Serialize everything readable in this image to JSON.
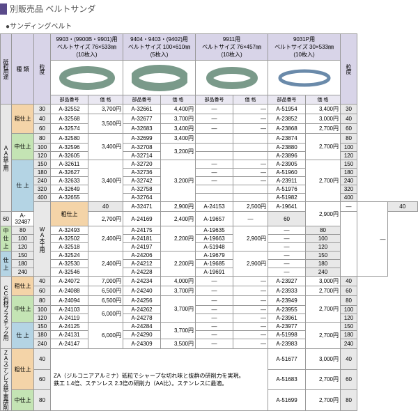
{
  "header": {
    "title": "別販売品 ベルトサンダ"
  },
  "subheader": "●サンディングベルト",
  "topHeaders": {
    "use": "砥粒用途",
    "type": "種 類",
    "grit": "粒度",
    "gritR": "粒度"
  },
  "columns": [
    {
      "title": "9903・(9900B・9901)用\nベルトサイズ 76×533㎜\n(10枚入)"
    },
    {
      "title": "9404・9403・(9402)用\nベルトサイズ 100×610㎜\n(5枚入)"
    },
    {
      "title": "9911用\nベルトサイズ 76×457㎜\n(10枚入)"
    },
    {
      "title": "9031P用\nベルトサイズ 30×533㎜\n(10枚入)"
    }
  ],
  "subCols": {
    "partNo": "部品番号",
    "price": "価 格"
  },
  "uses": {
    "aa": "AA鉄工用",
    "wa": "WA木工用",
    "cc": "CC石材プラスチック用",
    "za": "ZAステンレス鉄工重研削"
  },
  "types": {
    "rough": "粗仕上",
    "mid": "中仕上",
    "fin": "仕 上"
  },
  "rows": [
    {
      "use": "aa",
      "useSpan": 12,
      "type": "rough",
      "typeCls": "orange",
      "typeSpan": 3,
      "grit": "30",
      "c1p": "A-32552",
      "c1v": "3,700円",
      "c2p": "A-32661",
      "c2v": "4,400円",
      "c3p": "—",
      "c3v": "—",
      "c4p": "A-51954",
      "c4v": "3,400円"
    },
    {
      "grit": "40",
      "c1p": "A-32568",
      "c1v": "",
      "c1vSpan": 2,
      "c1vText": "3,500円",
      "c2p": "A-32677",
      "c2v": "3,700円",
      "c3p": "—",
      "c3v": "—",
      "c4p": "A-23852",
      "c4v": "3,000円"
    },
    {
      "grit": "60",
      "c1p": "A-32574",
      "c2p": "A-32683",
      "c2v": "3,400円",
      "c3p": "—",
      "c3v": "—",
      "c4p": "A-23868",
      "c4v": "2,700円"
    },
    {
      "type": "mid",
      "typeCls": "green",
      "typeSpan": 3,
      "grit": "80",
      "c1p": "A-32580",
      "c1v": "",
      "c1vSpan": 3,
      "c1vText": "3,400円",
      "c2p": "A-32699",
      "c2v": "3,400円",
      "c3p": "",
      "c3v": "",
      "c4p": "A-23874",
      "c4v": "",
      "c4vSpan": 3,
      "c4vText": "2,700円"
    },
    {
      "grit": "100",
      "c1p": "A-32596",
      "c2p": "A-32708",
      "c2v": "",
      "c2vSpan": 2,
      "c2vText": "3,200円",
      "c3p": "",
      "c3v": "",
      "c4p": "A-23880"
    },
    {
      "grit": "120",
      "c1p": "A-32605",
      "c2p": "A-32714",
      "c3p": "",
      "c3v": "",
      "c4p": "A-23896"
    },
    {
      "type": "fin",
      "typeCls": "blue",
      "typeSpan": 6,
      "grit": "150",
      "c1p": "A-32611",
      "c1v": "",
      "c1vSpan": 5,
      "c1vText": "3,400円",
      "c2p": "A-32720",
      "c2v": "",
      "c2vSpan": 5,
      "c2vText": "3,200円",
      "c3p": "—",
      "c3v": "—",
      "c4p": "A-23905",
      "c4v": "",
      "c4vSpan": 5,
      "c4vText": "2,700円"
    },
    {
      "grit": "180",
      "c1p": "A-32627",
      "c2p": "A-32736",
      "c3p": "—",
      "c3v": "—",
      "c4p": "A-51960"
    },
    {
      "grit": "240",
      "c1p": "A-32633",
      "c2p": "A-32742",
      "c3p": "—",
      "c3v": "—",
      "c4p": "A-23911"
    },
    {
      "grit": "320",
      "c1p": "A-32649",
      "c2p": "A-32758",
      "c3p": "",
      "c3v": "",
      "c4p": "A-51976"
    },
    {
      "grit": "400",
      "c1p": "A-32655",
      "c2p": "A-32764",
      "c3p": "",
      "c3v": "",
      "c4p": "A-51982"
    },
    {
      "use": "wa",
      "useSpan": 8,
      "type": "rough",
      "typeCls": "orange",
      "typeSpan": 2,
      "grit": "40",
      "c1p": "A-32471",
      "c1v": "2,900円",
      "c2p": "A-24153",
      "c2v": "2,500円",
      "c3p": "A-19641",
      "c3v": "",
      "c3vSpan": 2,
      "c3vText": "2,900円",
      "c4p": "—",
      "c4v": "—",
      "c4vSpan": 8
    },
    {
      "grit": "60",
      "c1p": "A-32487",
      "c1v": "2,700円",
      "c2p": "A-24169",
      "c2v": "2,400円",
      "c3p": "A-19657",
      "c4p": "—"
    },
    {
      "type": "mid",
      "typeCls": "green",
      "typeSpan": 3,
      "grit": "80",
      "c1p": "A-32493",
      "c1v": "",
      "c1vSpan": 3,
      "c1vText": "2,400円",
      "c2p": "A-24175",
      "c2v": "",
      "c2vSpan": 3,
      "c2vText": "2,200円",
      "c3p": "A-19635",
      "c3v": "",
      "c3vSpan": 3,
      "c3vText": "2,900円",
      "c4p": "—"
    },
    {
      "grit": "100",
      "c1p": "A-32502",
      "c2p": "A-24181",
      "c3p": "A-19663",
      "c4p": "—"
    },
    {
      "grit": "120",
      "c1p": "A-32518",
      "c2p": "A-24197",
      "c3p": "A-51948",
      "c4p": "—"
    },
    {
      "type": "fin",
      "typeCls": "blue",
      "typeSpan": 3,
      "grit": "150",
      "c1p": "A-32524",
      "c1v": "",
      "c1vSpan": 3,
      "c1vText": "2,400円",
      "c2p": "A-24206",
      "c2v": "",
      "c2vSpan": 3,
      "c2vText": "2,200円",
      "c3p": "A-19679",
      "c3v": "",
      "c3vSpan": 3,
      "c3vText": "2,900円",
      "c4p": "—"
    },
    {
      "grit": "180",
      "c1p": "A-32530",
      "c2p": "A-24212",
      "c3p": "A-19685",
      "c4p": "—"
    },
    {
      "grit": "240",
      "c1p": "A-32546",
      "c2p": "A-24228",
      "c3p": "A-19691",
      "c4p": "—"
    },
    {
      "use": "cc",
      "useSpan": 8,
      "type": "rough",
      "typeCls": "orange",
      "typeSpan": 2,
      "grit": "40",
      "c1p": "A-24072",
      "c1v": "7,000円",
      "c2p": "A-24234",
      "c2v": "4,000円",
      "c3p": "—",
      "c3v": "—",
      "c4p": "A-23927",
      "c4v": "3,000円"
    },
    {
      "grit": "60",
      "c1p": "A-24088",
      "c1v": "6,500円",
      "c2p": "A-24240",
      "c2v": "3,700円",
      "c3p": "—",
      "c3v": "—",
      "c4p": "A-23933",
      "c4v": "2,700円"
    },
    {
      "type": "mid",
      "typeCls": "green",
      "typeSpan": 3,
      "grit": "80",
      "c1p": "A-24094",
      "c1v": "6,500円",
      "c2p": "A-24256",
      "c2v": "",
      "c2vSpan": 3,
      "c2vText": "3,700円",
      "c3p": "—",
      "c3v": "—",
      "c4p": "A-23949",
      "c4v": "",
      "c4vSpan": 3,
      "c4vText": "2,700円"
    },
    {
      "grit": "100",
      "c1p": "A-24103",
      "c1v": "",
      "c1vSpan": 2,
      "c1vText": "6,000円",
      "c2p": "A-24262",
      "c3p": "—",
      "c3v": "—",
      "c4p": "A-23955"
    },
    {
      "grit": "120",
      "c1p": "A-24119",
      "c2p": "A-24278",
      "c3p": "—",
      "c3v": "—",
      "c4p": "A-23961"
    },
    {
      "type": "fin",
      "typeCls": "blue",
      "typeSpan": 3,
      "grit": "150",
      "c1p": "A-24125",
      "c1v": "",
      "c1vSpan": 3,
      "c1vText": "6,000円",
      "c2p": "A-24284",
      "c2v": "",
      "c2vSpan": 2,
      "c2vText": "3,700円",
      "c3p": "—",
      "c3v": "—",
      "c4p": "A-23977",
      "c4v": "",
      "c4vSpan": 3,
      "c4vText": "2,700円"
    },
    {
      "grit": "180",
      "c1p": "A-24131",
      "c2p": "A-24290",
      "c3p": "—",
      "c3v": "—",
      "c4p": "A-51998"
    },
    {
      "grit": "240",
      "c1p": "A-24147",
      "c2p": "A-24309",
      "c2v": "3,500円",
      "c3p": "—",
      "c3v": "—",
      "c4p": "A-23983"
    },
    {
      "use": "za",
      "useSpan": 3,
      "type": "rough",
      "typeCls": "orange",
      "typeSpan": 2,
      "grit": "40",
      "note": "ZA（ジルコニアアルミナ）砥粒でシャープな切れ味と抜群の研削力を実現。\n鉄工 1.4倍、ステンレス 2.3倍の研削力（AA比）。ステンレスに最適。",
      "noteSpan": 3,
      "c4p": "A-51677",
      "c4v": "3,000円"
    },
    {
      "grit": "60",
      "c4p": "A-51683",
      "c4v": "2,700円"
    },
    {
      "type": "mid",
      "typeCls": "green",
      "typeSpan": 1,
      "grit": "80",
      "c4p": "A-51699",
      "c4v": "2,700円"
    }
  ]
}
